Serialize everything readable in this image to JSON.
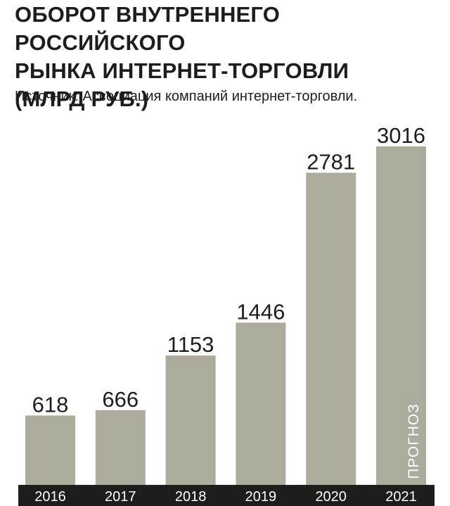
{
  "header": {
    "title_lines": [
      "ОБОРОТ ВНУТРЕННЕГО РОССИЙСКОГО",
      "РЫНКА ИНТЕРНЕТ-ТОРГОВЛИ",
      "(МЛРД РУБ.)"
    ],
    "source": "Источник: Ассоциация компаний интернет-торговли."
  },
  "colors": {
    "bar": "#acab9c",
    "axis_band": "#1d1d1b",
    "text": "#1d1d1b",
    "year_text": "#ffffff"
  },
  "chart_data": {
    "type": "bar",
    "title": "ОБОРОТ ВНУТРЕННЕГО РОССИЙСКОГО РЫНКА ИНТЕРНЕТ-ТОРГОВЛИ (МЛРД РУБ.)",
    "categories": [
      "2016",
      "2017",
      "2018",
      "2019",
      "2020",
      "2021"
    ],
    "values": [
      618,
      666,
      1153,
      1446,
      2781,
      3016
    ],
    "value_labels": [
      "618",
      "666",
      "1153",
      "1446",
      "2781",
      "3016"
    ],
    "forecast_label": "ПРОГНОЗ",
    "forecast_category": "2021",
    "xlabel": "",
    "ylabel": "",
    "ylim": [
      0,
      3016
    ],
    "grid": false,
    "legend": "none"
  }
}
